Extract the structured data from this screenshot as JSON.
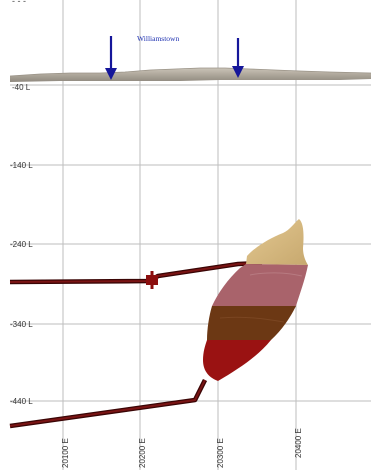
{
  "section": {
    "town_label": "Williamstown",
    "elevation_labels": [
      "-40 L",
      "-140 L",
      "-240 L",
      "-340 L",
      "-440 L"
    ],
    "easting_labels": [
      "20100 E",
      "20200 E",
      "20300 E",
      "20400 E"
    ]
  },
  "colors": {
    "grid": "#bdbdbd",
    "arrow": "#15169a",
    "town_text": "#1c2fb0",
    "terrain": "#b3ada2",
    "drive": "#5a0a0a",
    "ore_top": "#d5b97f",
    "ore_pink": "#a9636b",
    "ore_brown": "#6c3814",
    "ore_red": "#9a1212"
  }
}
